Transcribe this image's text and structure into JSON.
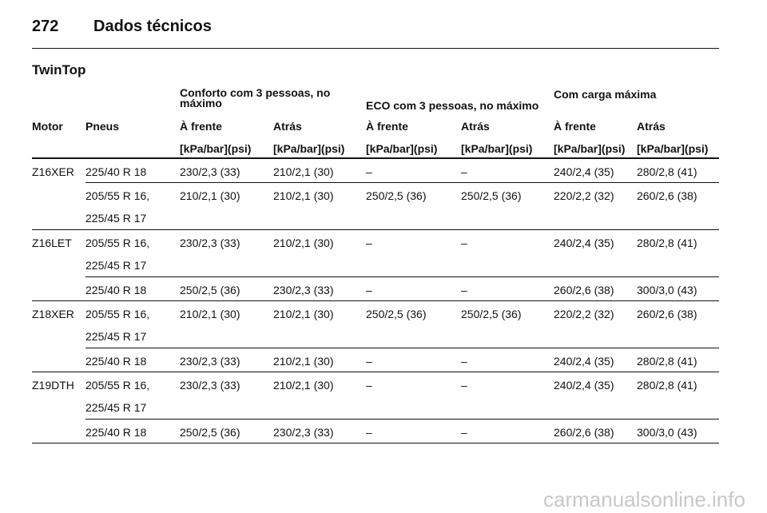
{
  "header": {
    "page_number": "272",
    "title": "Dados técnicos"
  },
  "section": "TwinTop",
  "table": {
    "group_headers": [
      "Conforto com 3 pessoas, no máximo",
      "ECO com 3 pessoas, no máximo",
      "Com carga máxima"
    ],
    "columns": [
      "Motor",
      "Pneus",
      "À frente",
      "Atrás",
      "À frente",
      "Atrás",
      "À frente",
      "Atrás"
    ],
    "units": [
      "[kPa/bar](psi)",
      "[kPa/bar](psi)",
      "[kPa/bar](psi)",
      "[kPa/bar](psi)",
      "[kPa/bar](psi)",
      "[kPa/bar](psi)"
    ],
    "rows": [
      {
        "motor": "Z16XER",
        "tyres": [
          "225/40 R 18"
        ],
        "pressures": [
          "230/2,3 (33)",
          "210/2,1 (30)",
          "–",
          "–",
          "240/2,4 (35)",
          "280/2,8 (41)"
        ]
      },
      {
        "tyres": [
          "205/55 R 16,",
          "225/45 R 17"
        ],
        "pressures": [
          "210/2,1 (30)",
          "210/2,1 (30)",
          "250/2,5 (36)",
          "250/2,5 (36)",
          "220/2,2 (32)",
          "260/2,6 (38)"
        ]
      },
      {
        "motor": "Z16LET",
        "tyres": [
          "205/55 R 16,",
          "225/45 R 17"
        ],
        "pressures": [
          "230/2,3 (33)",
          "210/2,1 (30)",
          "–",
          "–",
          "240/2,4 (35)",
          "280/2,8 (41)"
        ]
      },
      {
        "tyres": [
          "225/40 R 18"
        ],
        "pressures": [
          "250/2,5 (36)",
          "230/2,3 (33)",
          "–",
          "–",
          "260/2,6 (38)",
          "300/3,0 (43)"
        ]
      },
      {
        "motor": "Z18XER",
        "tyres": [
          "205/55 R 16,",
          "225/45 R 17"
        ],
        "pressures": [
          "210/2,1 (30)",
          "210/2,1 (30)",
          "250/2,5 (36)",
          "250/2,5 (36)",
          "220/2,2 (32)",
          "260/2,6 (38)"
        ]
      },
      {
        "tyres": [
          "225/40 R 18"
        ],
        "pressures": [
          "230/2,3 (33)",
          "210/2,1 (30)",
          "–",
          "–",
          "240/2,4 (35)",
          "280/2,8 (41)"
        ]
      },
      {
        "motor": "Z19DTH",
        "tyres": [
          "205/55 R 16,",
          "225/45 R 17"
        ],
        "pressures": [
          "230/2,3 (33)",
          "210/2,1 (30)",
          "–",
          "–",
          "240/2,4 (35)",
          "280/2,8 (41)"
        ]
      },
      {
        "tyres": [
          "225/40 R 18"
        ],
        "pressures": [
          "250/2,5 (36)",
          "230/2,3 (33)",
          "–",
          "–",
          "260/2,6 (38)",
          "300/3,0 (43)"
        ]
      }
    ]
  },
  "watermark": "carmanualsonline.info"
}
